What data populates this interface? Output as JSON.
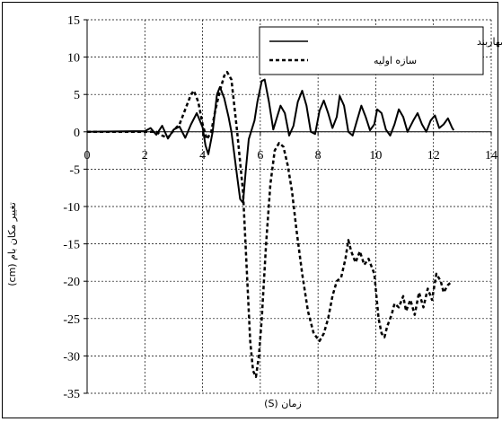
{
  "chart_data": {
    "type": "line",
    "xlabel": "زمان (S)",
    "ylabel": "تغییر مکان بام (cm)",
    "xlim": [
      0,
      14
    ],
    "ylim": [
      -35,
      15
    ],
    "xticks": [
      0,
      2,
      4,
      6,
      8,
      10,
      12,
      14
    ],
    "yticks": [
      15,
      10,
      5,
      0,
      -5,
      -10,
      -15,
      -20,
      -25,
      -30,
      -35
    ],
    "grid": true,
    "legend_position": "top-right",
    "series": [
      {
        "name": "سازه بهسازی شده با مهاربند",
        "style": "solid",
        "color": "#000000",
        "points": [
          [
            0,
            0
          ],
          [
            2.0,
            0.1
          ],
          [
            2.2,
            0.5
          ],
          [
            2.4,
            -0.4
          ],
          [
            2.6,
            0.8
          ],
          [
            2.8,
            -0.9
          ],
          [
            3.0,
            0.3
          ],
          [
            3.2,
            0.7
          ],
          [
            3.4,
            -0.8
          ],
          [
            3.6,
            1.0
          ],
          [
            3.8,
            2.5
          ],
          [
            4.0,
            0.6
          ],
          [
            4.1,
            -1.8
          ],
          [
            4.2,
            -3.0
          ],
          [
            4.35,
            0
          ],
          [
            4.5,
            5.0
          ],
          [
            4.6,
            6.0
          ],
          [
            4.75,
            4.5
          ],
          [
            4.9,
            2.0
          ],
          [
            5.0,
            0
          ],
          [
            5.2,
            -6.0
          ],
          [
            5.3,
            -9.0
          ],
          [
            5.4,
            -9.5
          ],
          [
            5.5,
            -5.0
          ],
          [
            5.6,
            -1.0
          ],
          [
            5.8,
            1.5
          ],
          [
            5.9,
            4.0
          ],
          [
            6.05,
            6.8
          ],
          [
            6.15,
            7.0
          ],
          [
            6.3,
            4.0
          ],
          [
            6.45,
            0.3
          ],
          [
            6.6,
            2.2
          ],
          [
            6.7,
            3.5
          ],
          [
            6.85,
            2.5
          ],
          [
            7.0,
            -0.5
          ],
          [
            7.15,
            0.8
          ],
          [
            7.3,
            4.0
          ],
          [
            7.45,
            5.5
          ],
          [
            7.6,
            3.5
          ],
          [
            7.75,
            0
          ],
          [
            7.9,
            -0.3
          ],
          [
            8.05,
            2.8
          ],
          [
            8.2,
            4.2
          ],
          [
            8.35,
            2.5
          ],
          [
            8.5,
            0.5
          ],
          [
            8.65,
            2.0
          ],
          [
            8.75,
            4.8
          ],
          [
            8.9,
            3.5
          ],
          [
            9.05,
            0
          ],
          [
            9.2,
            -0.5
          ],
          [
            9.35,
            1.5
          ],
          [
            9.5,
            3.5
          ],
          [
            9.65,
            2.0
          ],
          [
            9.8,
            0.2
          ],
          [
            9.95,
            1.0
          ],
          [
            10.05,
            3.0
          ],
          [
            10.2,
            2.5
          ],
          [
            10.35,
            0.3
          ],
          [
            10.5,
            -0.5
          ],
          [
            10.65,
            1.0
          ],
          [
            10.8,
            3.0
          ],
          [
            10.95,
            2.0
          ],
          [
            11.1,
            0
          ],
          [
            11.3,
            1.5
          ],
          [
            11.45,
            2.5
          ],
          [
            11.6,
            1.0
          ],
          [
            11.75,
            0
          ],
          [
            11.9,
            1.5
          ],
          [
            12.05,
            2.2
          ],
          [
            12.2,
            0.5
          ],
          [
            12.35,
            1.0
          ],
          [
            12.5,
            1.8
          ],
          [
            12.65,
            0.5
          ],
          [
            12.7,
            0.2
          ]
        ]
      },
      {
        "name": "سازه اولیه",
        "style": "dashed",
        "color": "#000000",
        "points": [
          [
            0,
            0
          ],
          [
            2.0,
            0
          ],
          [
            2.4,
            0
          ],
          [
            2.6,
            -0.5
          ],
          [
            2.8,
            -0.8
          ],
          [
            3.0,
            0.2
          ],
          [
            3.2,
            1.0
          ],
          [
            3.4,
            3.0
          ],
          [
            3.6,
            5.0
          ],
          [
            3.7,
            5.5
          ],
          [
            3.85,
            4.0
          ],
          [
            4.0,
            1.0
          ],
          [
            4.15,
            -1.0
          ],
          [
            4.3,
            0
          ],
          [
            4.45,
            3.0
          ],
          [
            4.6,
            5.5
          ],
          [
            4.75,
            7.5
          ],
          [
            4.85,
            8.0
          ],
          [
            5.0,
            7.0
          ],
          [
            5.2,
            0
          ],
          [
            5.4,
            -8.0
          ],
          [
            5.55,
            -20.0
          ],
          [
            5.65,
            -28.0
          ],
          [
            5.75,
            -32.0
          ],
          [
            5.85,
            -32.8
          ],
          [
            5.95,
            -30.0
          ],
          [
            6.05,
            -25.0
          ],
          [
            6.2,
            -15.0
          ],
          [
            6.35,
            -7.0
          ],
          [
            6.5,
            -2.5
          ],
          [
            6.65,
            -1.5
          ],
          [
            6.8,
            -2.0
          ],
          [
            6.95,
            -4.5
          ],
          [
            7.1,
            -8.0
          ],
          [
            7.25,
            -13.0
          ],
          [
            7.45,
            -19.0
          ],
          [
            7.65,
            -24.0
          ],
          [
            7.85,
            -27.0
          ],
          [
            8.05,
            -28.0
          ],
          [
            8.2,
            -27.0
          ],
          [
            8.35,
            -25.0
          ],
          [
            8.5,
            -22.0
          ],
          [
            8.65,
            -20.0
          ],
          [
            8.8,
            -19.5
          ],
          [
            8.95,
            -17.0
          ],
          [
            9.05,
            -14.5
          ],
          [
            9.15,
            -16.0
          ],
          [
            9.3,
            -17.5
          ],
          [
            9.45,
            -16.0
          ],
          [
            9.6,
            -17.8
          ],
          [
            9.75,
            -17.0
          ],
          [
            9.85,
            -18.0
          ],
          [
            9.95,
            -19.0
          ],
          [
            10.1,
            -25.0
          ],
          [
            10.2,
            -27.0
          ],
          [
            10.3,
            -27.5
          ],
          [
            10.4,
            -26.0
          ],
          [
            10.55,
            -24.5
          ],
          [
            10.65,
            -23.0
          ],
          [
            10.8,
            -23.5
          ],
          [
            10.95,
            -22.0
          ],
          [
            11.05,
            -24.0
          ],
          [
            11.2,
            -22.5
          ],
          [
            11.35,
            -24.5
          ],
          [
            11.5,
            -21.5
          ],
          [
            11.65,
            -23.5
          ],
          [
            11.8,
            -21.0
          ],
          [
            11.95,
            -22.5
          ],
          [
            12.1,
            -19.0
          ],
          [
            12.25,
            -20.0
          ],
          [
            12.35,
            -21.5
          ],
          [
            12.5,
            -20.5
          ],
          [
            12.65,
            -20.0
          ]
        ]
      }
    ]
  }
}
